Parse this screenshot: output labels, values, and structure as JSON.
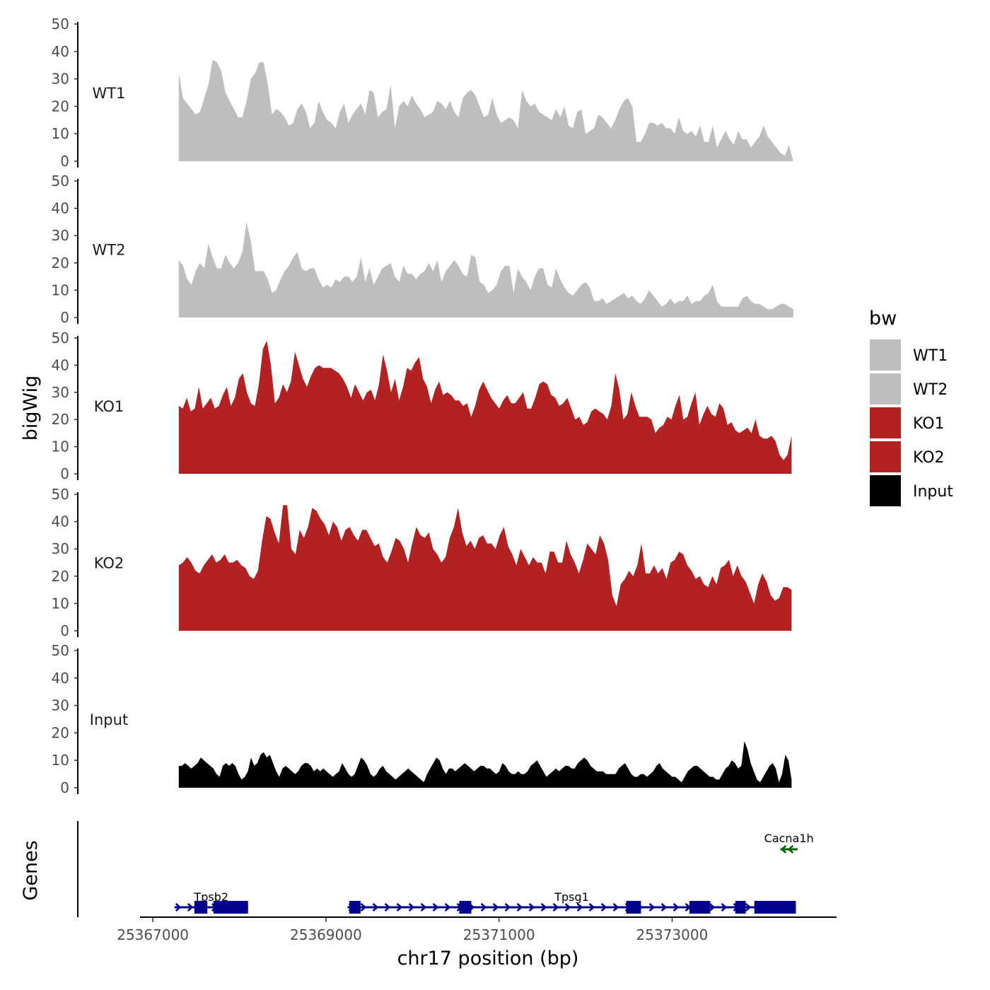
{
  "chart_data": {
    "type": "area",
    "y_axis_title": "bigWig",
    "x_axis_title": "chr17 position (bp)",
    "genes_axis_title": "Genes",
    "xlim": [
      25366950,
      25374900
    ],
    "ylim": [
      0,
      50
    ],
    "y_ticks": [
      "0",
      "10",
      "20",
      "30",
      "40",
      "50"
    ],
    "x_ticks": [
      {
        "value": 25367000,
        "label": "25367000"
      },
      {
        "value": 25369000,
        "label": "25369000"
      },
      {
        "value": 25371000,
        "label": "25371000"
      },
      {
        "value": 25373000,
        "label": "25373000"
      }
    ],
    "legend_title": "bw",
    "series": [
      {
        "name": "WT1",
        "color": "#bebebe",
        "start": 25367300,
        "end": 25374400,
        "values": [
          32,
          23,
          21,
          19,
          17,
          18,
          23,
          28,
          37,
          36,
          33,
          25,
          22,
          19,
          16,
          16,
          22,
          30,
          32,
          36,
          36,
          28,
          17,
          19,
          18,
          16,
          13,
          14,
          19,
          21,
          18,
          12,
          14,
          22,
          18,
          15,
          14,
          12,
          18,
          21,
          14,
          17,
          19,
          21,
          17,
          26,
          25,
          16,
          18,
          19,
          28,
          12,
          20,
          22,
          20,
          24,
          21,
          19,
          16,
          17,
          18,
          22,
          21,
          19,
          22,
          18,
          16,
          23,
          25,
          26,
          24,
          20,
          16,
          17,
          23,
          17,
          14,
          15,
          16,
          15,
          12,
          26,
          22,
          20,
          21,
          18,
          17,
          16,
          15,
          19,
          16,
          20,
          13,
          12,
          18,
          19,
          10,
          11,
          12,
          17,
          16,
          14,
          12,
          15,
          19,
          22,
          23,
          20,
          7,
          7,
          10,
          14,
          14,
          13,
          14,
          12,
          12,
          10,
          16,
          11,
          10,
          11,
          9,
          13,
          7,
          7,
          13,
          5,
          8,
          11,
          8,
          6,
          11,
          8,
          8,
          5,
          7,
          9,
          13,
          9,
          7,
          5,
          3,
          2,
          6,
          0
        ]
      },
      {
        "name": "WT2",
        "color": "#bebebe",
        "start": 25367300,
        "end": 25374400,
        "values": [
          21,
          19,
          14,
          12,
          17,
          20,
          18,
          27,
          22,
          18,
          18,
          23,
          20,
          18,
          20,
          24,
          35,
          28,
          17,
          17,
          17,
          14,
          9,
          10,
          14,
          17,
          19,
          22,
          24,
          18,
          17,
          18,
          18,
          14,
          11,
          12,
          11,
          14,
          13,
          15,
          15,
          13,
          15,
          22,
          13,
          18,
          12,
          15,
          18,
          19,
          20,
          15,
          13,
          19,
          16,
          16,
          14,
          16,
          17,
          20,
          17,
          21,
          13,
          17,
          19,
          21,
          19,
          16,
          15,
          23,
          22,
          13,
          12,
          9,
          10,
          12,
          17,
          19,
          19,
          9,
          18,
          15,
          13,
          10,
          15,
          18,
          18,
          12,
          11,
          18,
          14,
          11,
          9,
          8,
          10,
          12,
          13,
          11,
          6,
          6,
          7,
          5,
          6,
          7,
          8,
          9,
          7,
          8,
          6,
          5,
          7,
          10,
          8,
          6,
          4,
          5,
          7,
          5,
          6,
          6,
          8,
          5,
          6,
          6,
          8,
          9,
          12,
          6,
          4,
          4,
          4,
          4,
          4,
          7,
          8,
          6,
          5,
          5,
          4,
          3,
          3,
          4,
          5,
          5,
          4,
          3
        ]
      },
      {
        "name": "KO1",
        "color": "#b22222",
        "start": 25367300,
        "end": 25374380,
        "values": [
          25,
          24,
          28,
          23,
          24,
          32,
          24,
          26,
          28,
          24,
          25,
          29,
          32,
          25,
          28,
          35,
          37,
          30,
          26,
          25,
          33,
          46,
          49,
          40,
          26,
          28,
          33,
          30,
          34,
          45,
          40,
          35,
          32,
          36,
          39,
          40,
          39,
          39,
          39,
          38,
          37,
          35,
          32,
          28,
          33,
          30,
          27,
          30,
          31,
          27,
          33,
          44,
          38,
          30,
          35,
          27,
          32,
          39,
          38,
          41,
          43,
          35,
          32,
          26,
          31,
          34,
          29,
          30,
          29,
          27,
          27,
          25,
          26,
          21,
          25,
          31,
          34,
          31,
          28,
          26,
          24,
          27,
          29,
          26,
          26,
          28,
          30,
          24,
          24,
          28,
          33,
          34,
          33,
          29,
          28,
          25,
          26,
          28,
          24,
          20,
          21,
          18,
          19,
          23,
          24,
          23,
          22,
          20,
          25,
          37,
          31,
          20,
          22,
          30,
          25,
          21,
          21,
          21,
          20,
          15,
          17,
          18,
          21,
          20,
          25,
          29,
          20,
          21,
          26,
          30,
          18,
          22,
          25,
          22,
          21,
          26,
          24,
          18,
          19,
          16,
          15,
          16,
          17,
          15,
          20,
          14,
          13,
          13,
          14,
          12,
          7,
          5,
          7,
          14
        ]
      },
      {
        "name": "KO2",
        "color": "#b22222",
        "start": 25367300,
        "end": 25374380,
        "values": [
          24,
          25,
          27,
          25,
          22,
          21,
          24,
          26,
          28,
          25,
          26,
          28,
          25,
          25,
          26,
          24,
          23,
          20,
          19,
          22,
          33,
          42,
          41,
          36,
          32,
          46,
          46,
          30,
          28,
          37,
          34,
          38,
          45,
          44,
          41,
          39,
          35,
          40,
          38,
          33,
          37,
          38,
          35,
          33,
          37,
          37,
          34,
          31,
          32,
          27,
          25,
          29,
          34,
          33,
          30,
          25,
          32,
          38,
          35,
          34,
          36,
          30,
          28,
          25,
          27,
          34,
          38,
          45,
          36,
          31,
          33,
          30,
          34,
          35,
          32,
          32,
          30,
          35,
          38,
          31,
          28,
          24,
          30,
          27,
          24,
          27,
          25,
          25,
          21,
          29,
          29,
          25,
          25,
          33,
          28,
          25,
          21,
          26,
          32,
          30,
          28,
          35,
          32,
          26,
          13,
          9,
          17,
          19,
          22,
          20,
          24,
          32,
          21,
          21,
          24,
          21,
          23,
          19,
          25,
          26,
          29,
          28,
          24,
          22,
          19,
          20,
          17,
          16,
          20,
          17,
          23,
          24,
          26,
          20,
          24,
          20,
          18,
          14,
          10,
          17,
          21,
          18,
          13,
          11,
          12,
          16,
          16,
          15
        ]
      },
      {
        "name": "Input",
        "color": "#000000",
        "start": 25367300,
        "end": 25374380,
        "values": [
          8,
          8,
          9,
          8,
          7,
          8,
          9,
          11,
          10,
          9,
          8,
          7,
          5,
          4,
          8,
          9,
          8,
          9,
          8,
          5,
          3,
          4,
          6,
          11,
          8,
          9,
          12,
          13,
          11,
          12,
          9,
          6,
          4,
          7,
          8,
          7,
          6,
          5,
          6,
          8,
          9,
          9,
          8,
          6,
          7,
          6,
          7,
          6,
          5,
          4,
          5,
          6,
          9,
          7,
          5,
          4,
          5,
          8,
          11,
          10,
          8,
          5,
          4,
          5,
          7,
          8,
          6,
          5,
          4,
          3,
          4,
          5,
          6,
          7,
          6,
          5,
          4,
          3,
          2,
          5,
          7,
          9,
          11,
          10,
          7,
          5,
          7,
          7,
          6,
          7,
          8,
          9,
          8,
          7,
          6,
          7,
          8,
          8,
          7,
          7,
          6,
          5,
          6,
          9,
          8,
          6,
          5,
          5,
          6,
          5,
          5,
          6,
          8,
          9,
          10,
          8,
          6,
          4,
          5,
          6,
          7,
          6,
          7,
          8,
          8,
          7,
          7,
          9,
          10,
          11,
          10,
          8,
          7,
          6,
          6,
          6,
          5,
          5,
          5,
          5,
          7,
          8,
          9,
          7,
          5,
          4,
          4,
          5,
          5,
          4,
          5,
          6,
          8,
          9,
          7,
          6,
          5,
          4,
          4,
          3,
          2,
          4,
          6,
          7,
          8,
          8,
          7,
          6,
          5,
          4,
          4,
          3,
          3,
          5,
          7,
          8,
          10,
          9,
          7,
          8,
          17,
          14,
          9,
          6,
          3,
          2,
          4,
          6,
          8,
          9,
          7,
          2,
          5,
          12,
          10,
          3
        ]
      }
    ],
    "genes": {
      "track_color": "#00008b",
      "reverse_color": "#006400",
      "items": [
        {
          "name": "Tpsb2",
          "start": 25367250,
          "end": 25368100,
          "strand": "+",
          "exons": [
            [
              25367480,
              25367630
            ],
            [
              25367700,
              25368100
            ]
          ]
        },
        {
          "name": "Tpsg1",
          "start": 25369250,
          "end": 25374430,
          "strand": "+",
          "exons": [
            [
              25369270,
              25369400
            ],
            [
              25370540,
              25370680
            ],
            [
              25372470,
              25372640
            ],
            [
              25373200,
              25373440
            ],
            [
              25373730,
              25373850
            ],
            [
              25373950,
              25374430
            ]
          ]
        },
        {
          "name": "Cacna1h",
          "start": 25374250,
          "end": 25374450,
          "strand": "-",
          "exons": []
        }
      ]
    }
  }
}
